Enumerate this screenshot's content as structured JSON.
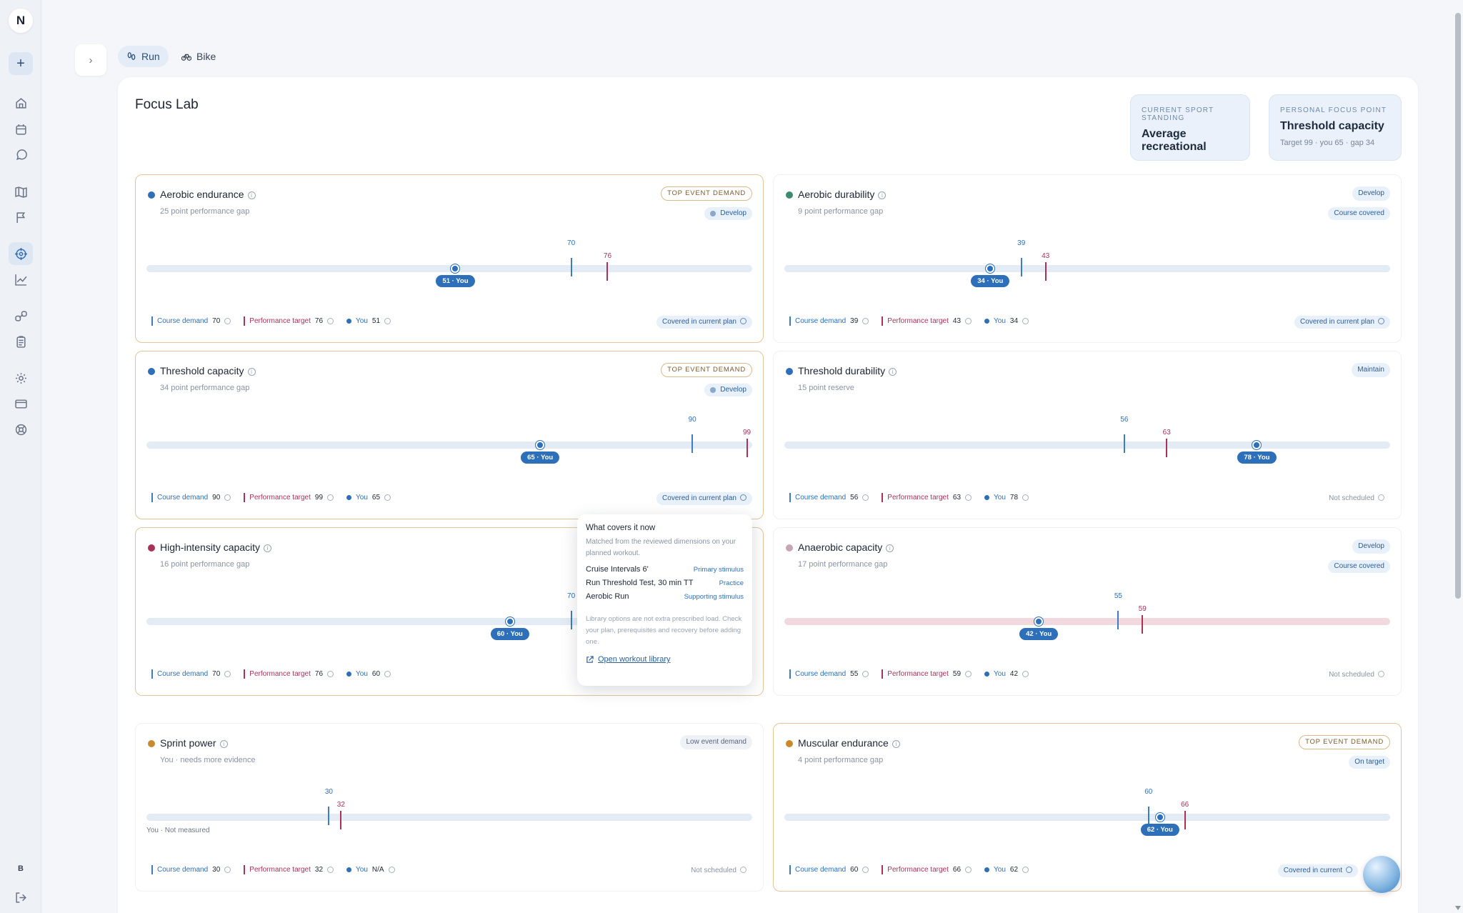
{
  "rail": {
    "logo": "N",
    "bottom_initial": "B",
    "icons": [
      "home-icon",
      "calendar-icon",
      "chat-icon",
      "map-icon",
      "flag-icon",
      "target-icon",
      "chart-icon",
      "link-icon",
      "clipboard-icon",
      "gear-icon",
      "card-icon",
      "support-icon"
    ]
  },
  "tabs": [
    {
      "label": "Run"
    },
    {
      "label": "Bike"
    }
  ],
  "page": {
    "title": "Focus Lab",
    "standing": {
      "kicker": "CURRENT SPORT STANDING",
      "value": "Average recreational"
    },
    "focus": {
      "kicker": "PERSONAL FOCUS POINT",
      "value": "Threshold capacity",
      "detail": "Target 99 · you 65 · gap 34"
    }
  },
  "legend_labels": {
    "demand": "Course demand",
    "target": "Performance target",
    "you": "You"
  },
  "cards": [
    {
      "name": "Aerobic endurance",
      "sub": "25 point performance gap",
      "color": "#2d6fb8",
      "tag": "TOP EVENT DEMAND",
      "status": "Develop",
      "demand": 70,
      "target": 76,
      "you": 51,
      "you_label": "51 · You",
      "plan": "Covered in current plan"
    },
    {
      "name": "Aerobic durability",
      "sub": "9 point performance gap",
      "color": "#3d8a6e",
      "tag": "Develop",
      "status": "Course covered",
      "demand": 39,
      "target": 43,
      "you": 34,
      "you_label": "34 · You",
      "plan": "Covered in current plan"
    },
    {
      "name": "Threshold capacity",
      "sub": "34 point performance gap",
      "color": "#2d6fb8",
      "tag": "TOP EVENT DEMAND",
      "status": "Develop",
      "demand": 90,
      "target": 99,
      "you": 65,
      "you_label": "65 · You",
      "plan": "Covered in current plan"
    },
    {
      "name": "Threshold durability",
      "sub": "15 point reserve",
      "color": "#2d6fb8",
      "tag": "Maintain",
      "status": "",
      "demand": 56,
      "target": 63,
      "you": 78,
      "you_label": "78 · You",
      "plan": "Not scheduled"
    },
    {
      "name": "High-intensity capacity",
      "sub": "16 point performance gap",
      "color": "#a8325a",
      "tag": "",
      "status": "",
      "demand": 70,
      "target": 76,
      "you": 60,
      "you_label": "60 · You",
      "plan": "Not scheduled"
    },
    {
      "name": "Anaerobic capacity",
      "sub": "17 point performance gap",
      "color": "#c4a7b2",
      "tag": "Develop",
      "status": "Course covered",
      "demand": 55,
      "target": 59,
      "you": 42,
      "you_label": "42 · You",
      "plan": "Not scheduled"
    },
    {
      "name": "Sprint power",
      "sub": "You · needs more evidence",
      "color": "#c98a2e",
      "tag": "Low event demand",
      "status": "",
      "demand": 30,
      "target": 32,
      "you": "N/A",
      "you_label": "",
      "not_measured": "You · Not measured",
      "plan": "Not scheduled"
    },
    {
      "name": "Muscular endurance",
      "sub": "4 point performance gap",
      "color": "#c98a2e",
      "tag": "TOP EVENT DEMAND",
      "status": "On target",
      "demand": 60,
      "target": 66,
      "you": 62,
      "you_label": "62 · You",
      "plan": "Covered in current"
    }
  ],
  "popover": {
    "title": "What covers it now",
    "desc": "Matched from the reviewed dimensions on your planned workout.",
    "rows": [
      {
        "workout": "Cruise Intervals 6'",
        "role": "Primary stimulus"
      },
      {
        "workout": "Run Threshold Test, 30 min TT",
        "role": "Practice"
      },
      {
        "workout": "Aerobic Run",
        "role": "Supporting stimulus"
      }
    ],
    "note": "Library options are not extra prescribed load. Check your plan, prerequisites and recovery before adding one.",
    "link": "Open workout library"
  }
}
